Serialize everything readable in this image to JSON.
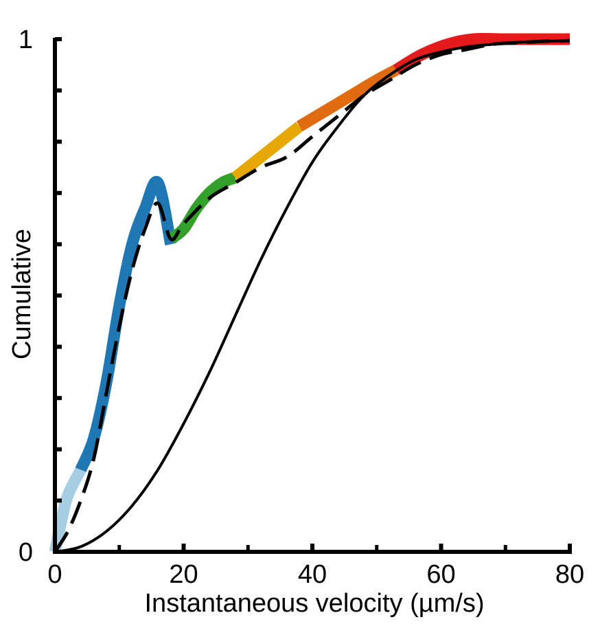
{
  "chart_data": {
    "type": "line",
    "title": "",
    "xlabel": "Instantaneous velocity (µm/s)",
    "ylabel": "Cumulative",
    "xlim": [
      0,
      80
    ],
    "ylim": [
      0,
      1
    ],
    "x_ticks": [
      0,
      20,
      40,
      60,
      80
    ],
    "x_tick_labels": [
      "0",
      "20",
      "40",
      "60",
      "80"
    ],
    "x_minor_ticks": [
      10,
      30,
      50,
      70
    ],
    "y_ticks": [
      0,
      0.1,
      0.2,
      0.3,
      0.4,
      0.5,
      0.6,
      0.7,
      0.8,
      0.9,
      1
    ],
    "y_tick_labels": [
      "0",
      "",
      "",
      "",
      "",
      "",
      "",
      "",
      "",
      "",
      "1"
    ],
    "grid": false,
    "legend": "none",
    "series": [
      {
        "style": "colored-segments",
        "segments": [
          {
            "color": "#a6cee3",
            "x": [
              0,
              1,
              2,
              4
            ],
            "y": [
              0,
              0.06,
              0.11,
              0.16
            ]
          },
          {
            "color": "#1f78b4",
            "x": [
              4,
              6,
              8,
              10,
              12,
              14,
              16,
              18
            ],
            "y": [
              0.16,
              0.22,
              0.33,
              0.48,
              0.6,
              0.67,
              0.72,
              0.6
            ]
          },
          {
            "color": "#33a02c",
            "x": [
              18,
              20,
              22,
              24,
              26,
              28
            ],
            "y": [
              0.61,
              0.63,
              0.67,
              0.7,
              0.72,
              0.73
            ]
          },
          {
            "color": "#e6a800",
            "x": [
              28,
              31,
              34,
              37,
              38
            ],
            "y": [
              0.73,
              0.76,
              0.79,
              0.82,
              0.83
            ]
          },
          {
            "color": "#e06a10",
            "x": [
              38,
              42,
              46,
              50,
              53
            ],
            "y": [
              0.83,
              0.86,
              0.89,
              0.92,
              0.94
            ]
          },
          {
            "color": "#e41a1c",
            "x": [
              53,
              57,
              61,
              65,
              70,
              75,
              80
            ],
            "y": [
              0.94,
              0.97,
              0.99,
              1.0,
              1.0,
              1.0,
              1.0
            ]
          }
        ]
      },
      {
        "style": "dashed-black",
        "x": [
          0,
          2,
          4,
          6,
          8,
          10,
          12,
          14,
          16,
          18,
          20,
          24,
          28,
          32,
          36,
          40,
          44,
          48,
          52,
          56,
          60,
          64,
          68,
          72,
          76,
          80
        ],
        "y": [
          0,
          0.04,
          0.1,
          0.18,
          0.31,
          0.44,
          0.55,
          0.63,
          0.68,
          0.61,
          0.64,
          0.69,
          0.72,
          0.75,
          0.77,
          0.81,
          0.85,
          0.89,
          0.92,
          0.95,
          0.97,
          0.98,
          0.99,
          0.993,
          0.996,
          0.997
        ]
      },
      {
        "style": "solid-black",
        "x": [
          0,
          4,
          8,
          12,
          16,
          20,
          24,
          28,
          32,
          36,
          40,
          44,
          48,
          52,
          56,
          60,
          64,
          68,
          72,
          76,
          80
        ],
        "y": [
          0,
          0.01,
          0.04,
          0.09,
          0.16,
          0.25,
          0.35,
          0.46,
          0.57,
          0.67,
          0.76,
          0.83,
          0.89,
          0.93,
          0.96,
          0.975,
          0.985,
          0.99,
          0.994,
          0.996,
          0.997
        ]
      }
    ]
  }
}
